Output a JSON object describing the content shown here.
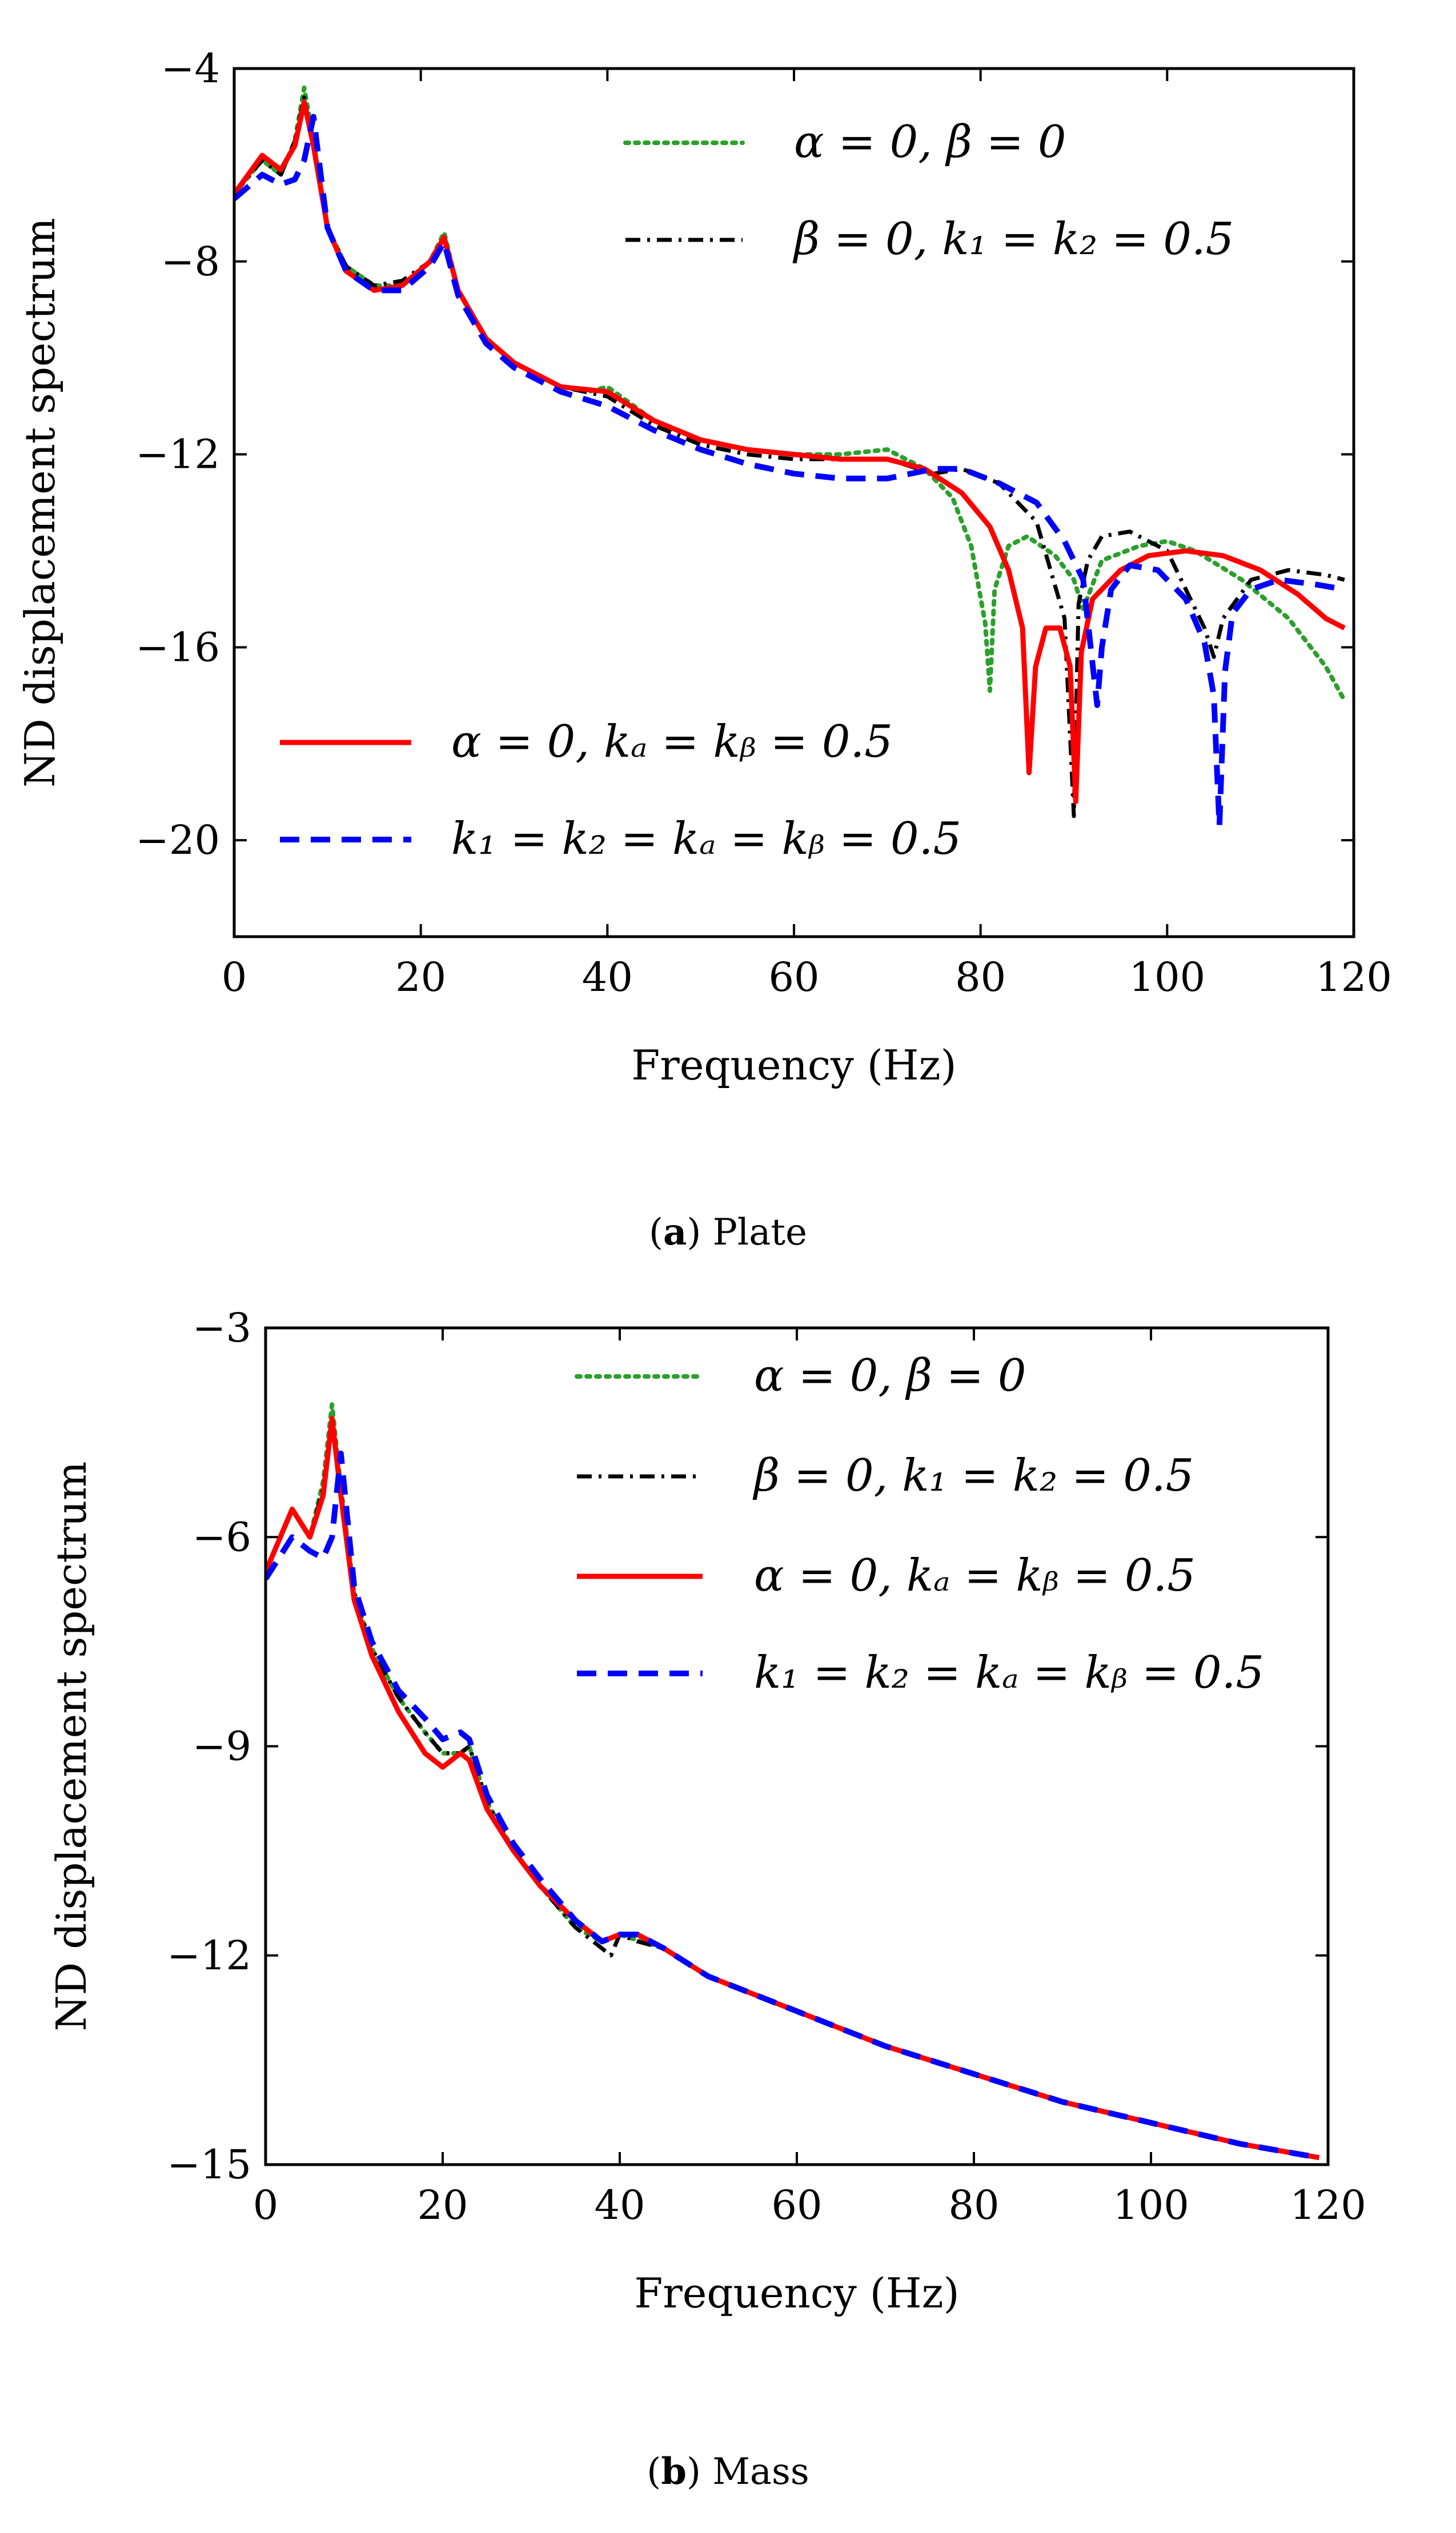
{
  "chart_data": [
    {
      "type": "line",
      "panel": "a",
      "caption_letter": "a",
      "caption_text": "Plate",
      "xlabel": "Frequency (Hz)",
      "ylabel": "ND displacement spectrum",
      "xlim": [
        0,
        120
      ],
      "ylim": [
        -22,
        -4
      ],
      "xticks": [
        0,
        20,
        40,
        60,
        80,
        100,
        120
      ],
      "xtick_labels": [
        "0",
        "20",
        "40",
        "60",
        "80",
        "100",
        "120"
      ],
      "yticks": [
        -4,
        -8,
        -12,
        -16,
        -20
      ],
      "ytick_labels": [
        "−4",
        "−8",
        "−12",
        "−16",
        "−20"
      ],
      "grid": false,
      "series": [
        {
          "name": "α = 0, β = 0",
          "color": "#2ca02c",
          "style": "dotted",
          "x": [
            0,
            3,
            5,
            6.5,
            7.5,
            8.5,
            10,
            12,
            15,
            18,
            21,
            22.5,
            24,
            27,
            30,
            35,
            38,
            40,
            45,
            50,
            55,
            60,
            65,
            70,
            74,
            77,
            79,
            80.5,
            81,
            81.5,
            83,
            85,
            88,
            90,
            91,
            93,
            97,
            100,
            103,
            108,
            113,
            117,
            119
          ],
          "y": [
            -6.6,
            -5.9,
            -6.2,
            -5.5,
            -4.4,
            -5.5,
            -7.3,
            -8.1,
            -8.5,
            -8.5,
            -8.0,
            -7.4,
            -8.6,
            -9.6,
            -10.1,
            -10.6,
            -10.7,
            -10.6,
            -11.3,
            -11.7,
            -11.9,
            -12.0,
            -12.0,
            -11.9,
            -12.3,
            -12.9,
            -13.9,
            -15.5,
            -16.9,
            -14.8,
            -13.9,
            -13.7,
            -14.1,
            -14.6,
            -15.2,
            -14.2,
            -13.9,
            -13.8,
            -14.0,
            -14.6,
            -15.4,
            -16.4,
            -17.1
          ]
        },
        {
          "name": "β = 0, k₁ = k₂ = 0.5",
          "color": "#000000",
          "style": "dashdot",
          "x": [
            0,
            3,
            5,
            6.5,
            7.5,
            8.5,
            10,
            12,
            15,
            18,
            21,
            22.5,
            24,
            27,
            30,
            35,
            40,
            45,
            50,
            55,
            60,
            65,
            70,
            75,
            78,
            82,
            86,
            89,
            90,
            90.5,
            91.5,
            93,
            96,
            100,
            104,
            105,
            106,
            109,
            113,
            117,
            119
          ],
          "y": [
            -6.6,
            -5.9,
            -6.2,
            -5.5,
            -4.6,
            -5.6,
            -7.3,
            -8.1,
            -8.5,
            -8.4,
            -8.0,
            -7.5,
            -8.6,
            -9.6,
            -10.1,
            -10.6,
            -10.8,
            -11.4,
            -11.8,
            -12.0,
            -12.1,
            -12.1,
            -12.1,
            -12.4,
            -12.3,
            -12.6,
            -13.4,
            -15.4,
            -19.5,
            -15.1,
            -14.2,
            -13.7,
            -13.6,
            -14.0,
            -15.6,
            -16.2,
            -15.4,
            -14.6,
            -14.4,
            -14.5,
            -14.6
          ]
        },
        {
          "name": "α = 0, kₐ = kᵦ = 0.5",
          "color": "#ff0000",
          "style": "solid",
          "x": [
            0,
            3,
            5,
            6.5,
            7.5,
            8.5,
            10,
            12,
            15,
            18,
            21,
            22.5,
            24,
            27,
            30,
            35,
            40,
            45,
            50,
            55,
            60,
            65,
            70,
            74,
            78,
            81,
            83,
            84.5,
            85.2,
            85.9,
            87,
            88.5,
            89.6,
            90.2,
            90.8,
            92,
            95,
            98,
            102,
            106,
            110,
            114,
            117,
            119
          ],
          "y": [
            -6.6,
            -5.8,
            -6.1,
            -5.6,
            -4.7,
            -5.6,
            -7.3,
            -8.2,
            -8.6,
            -8.5,
            -8.0,
            -7.5,
            -8.6,
            -9.6,
            -10.1,
            -10.6,
            -10.7,
            -11.3,
            -11.7,
            -11.9,
            -12.0,
            -12.1,
            -12.1,
            -12.3,
            -12.8,
            -13.5,
            -14.4,
            -15.6,
            -18.6,
            -16.4,
            -15.6,
            -15.6,
            -16.4,
            -19.2,
            -16.1,
            -15.0,
            -14.4,
            -14.1,
            -14.0,
            -14.1,
            -14.4,
            -14.9,
            -15.4,
            -15.6
          ]
        },
        {
          "name": "k₁ = k₂ = kₐ = kᵦ = 0.5",
          "color": "#0000ff",
          "style": "dashed",
          "x": [
            0,
            3,
            5,
            6.5,
            7.5,
            8.5,
            10,
            12,
            15,
            18,
            21,
            22.5,
            24,
            27,
            30,
            35,
            40,
            45,
            50,
            55,
            60,
            65,
            70,
            75,
            78,
            82,
            86,
            89,
            91,
            92.5,
            93,
            94,
            96,
            99,
            102,
            104,
            105,
            105.6,
            106.2,
            107,
            109,
            112,
            116,
            119
          ],
          "y": [
            -6.7,
            -6.2,
            -6.4,
            -6.3,
            -5.9,
            -5.0,
            -7.3,
            -8.2,
            -8.6,
            -8.6,
            -8.1,
            -7.6,
            -8.7,
            -9.7,
            -10.2,
            -10.7,
            -11.0,
            -11.5,
            -11.9,
            -12.2,
            -12.4,
            -12.5,
            -12.5,
            -12.3,
            -12.3,
            -12.6,
            -13.0,
            -13.8,
            -14.6,
            -17.2,
            -16.0,
            -14.8,
            -14.3,
            -14.4,
            -15.0,
            -15.9,
            -17.0,
            -19.7,
            -16.5,
            -15.3,
            -14.8,
            -14.6,
            -14.7,
            -14.8
          ]
        }
      ],
      "legends": [
        {
          "placement": "top-right",
          "entries": [
            0,
            1
          ]
        },
        {
          "placement": "lower-left",
          "entries": [
            2,
            3
          ]
        }
      ]
    },
    {
      "type": "line",
      "panel": "b",
      "caption_letter": "b",
      "caption_text": "Mass",
      "xlabel": "Frequency (Hz)",
      "ylabel": "ND displacement spectrum",
      "xlim": [
        0,
        120
      ],
      "ylim": [
        -15,
        -3
      ],
      "xticks": [
        0,
        20,
        40,
        60,
        80,
        100,
        120
      ],
      "xtick_labels": [
        "0",
        "20",
        "40",
        "60",
        "80",
        "100",
        "120"
      ],
      "yticks": [
        -3,
        -6,
        -9,
        -12,
        -15
      ],
      "ytick_labels": [
        "−3",
        "−6",
        "−9",
        "−12",
        "−15"
      ],
      "grid": false,
      "series": [
        {
          "name": "α = 0, β = 0",
          "color": "#2ca02c",
          "style": "dotted",
          "x": [
            0,
            3,
            5,
            6.5,
            7.5,
            8.5,
            10,
            12,
            15,
            18,
            20,
            22,
            23,
            25,
            28,
            31,
            35,
            38,
            40,
            45,
            50,
            60,
            70,
            80,
            90,
            100,
            110,
            119
          ],
          "y": [
            -6.5,
            -5.6,
            -6.0,
            -5.2,
            -4.1,
            -5.3,
            -6.8,
            -7.6,
            -8.3,
            -8.8,
            -9.1,
            -9.1,
            -9.0,
            -9.8,
            -10.5,
            -11.0,
            -11.6,
            -11.8,
            -11.7,
            -11.9,
            -12.3,
            -12.8,
            -13.3,
            -13.7,
            -14.1,
            -14.4,
            -14.7,
            -14.9
          ]
        },
        {
          "name": "β = 0, k₁ = k₂ = 0.5",
          "color": "#000000",
          "style": "dashdot",
          "x": [
            0,
            3,
            5,
            6.5,
            7.5,
            8.5,
            10,
            12,
            15,
            18,
            20,
            22,
            23,
            25,
            28,
            31,
            35,
            38,
            39,
            40,
            42,
            45,
            50,
            60,
            70,
            80,
            90,
            100,
            110,
            119
          ],
          "y": [
            -6.5,
            -5.6,
            -6.0,
            -5.3,
            -4.3,
            -5.3,
            -6.8,
            -7.6,
            -8.3,
            -8.8,
            -9.1,
            -9.1,
            -9.0,
            -9.8,
            -10.5,
            -11.0,
            -11.6,
            -11.9,
            -12.0,
            -11.7,
            -11.8,
            -11.9,
            -12.3,
            -12.8,
            -13.3,
            -13.7,
            -14.1,
            -14.4,
            -14.7,
            -14.9
          ]
        },
        {
          "name": "α = 0, kₐ = kᵦ = 0.5",
          "color": "#ff0000",
          "style": "solid",
          "x": [
            0,
            3,
            5,
            6.5,
            7.5,
            8.5,
            10,
            12,
            15,
            18,
            20,
            22,
            23,
            25,
            28,
            31,
            35,
            38,
            40,
            42,
            45,
            50,
            60,
            70,
            80,
            90,
            100,
            110,
            119
          ],
          "y": [
            -6.5,
            -5.6,
            -6.0,
            -5.4,
            -4.3,
            -5.4,
            -6.9,
            -7.7,
            -8.5,
            -9.1,
            -9.3,
            -9.1,
            -9.2,
            -9.9,
            -10.5,
            -11.0,
            -11.5,
            -11.8,
            -11.7,
            -11.7,
            -11.9,
            -12.3,
            -12.8,
            -13.3,
            -13.7,
            -14.1,
            -14.4,
            -14.7,
            -14.9
          ]
        },
        {
          "name": "k₁ = k₂ = kₐ = kᵦ = 0.5",
          "color": "#0000ff",
          "style": "dashed",
          "x": [
            0,
            3,
            5,
            6.5,
            7.5,
            8.5,
            10,
            12,
            15,
            18,
            20,
            22,
            23,
            25,
            28,
            31,
            35,
            38,
            40,
            42,
            45,
            50,
            60,
            70,
            80,
            90,
            100,
            110,
            119
          ],
          "y": [
            -6.6,
            -6.0,
            -6.2,
            -6.3,
            -6.0,
            -4.8,
            -6.7,
            -7.5,
            -8.2,
            -8.6,
            -8.9,
            -8.8,
            -8.9,
            -9.7,
            -10.4,
            -10.9,
            -11.5,
            -11.8,
            -11.7,
            -11.7,
            -11.9,
            -12.3,
            -12.8,
            -13.3,
            -13.7,
            -14.1,
            -14.4,
            -14.7,
            -14.9
          ]
        }
      ],
      "legends": [
        {
          "placement": "top-right",
          "entries": [
            0,
            1,
            2,
            3
          ]
        }
      ]
    }
  ]
}
